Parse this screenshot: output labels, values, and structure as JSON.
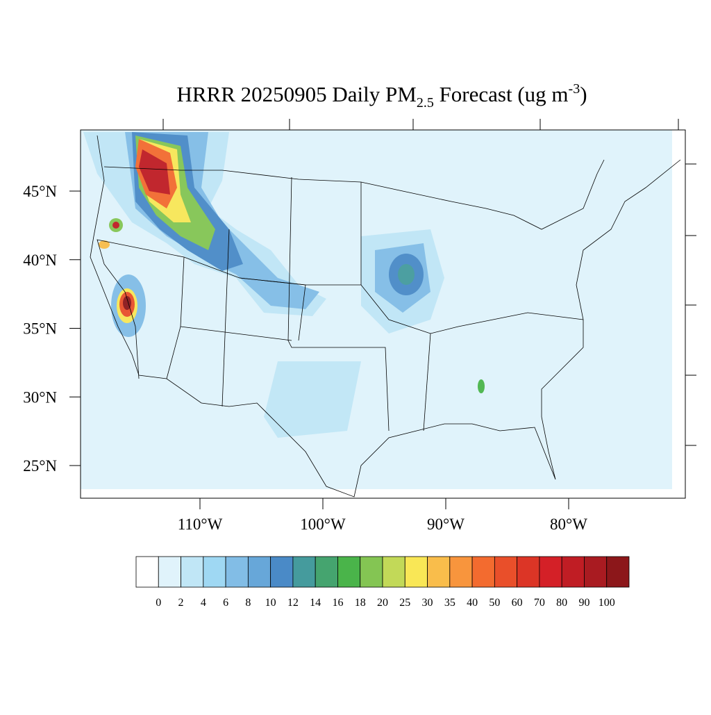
{
  "header": {
    "title_main": "HRRR 20250905 Daily PM",
    "title_sub": "2.5",
    "title_rest": " Forecast (ug m",
    "title_sup": "-3",
    "title_end": ")"
  },
  "map": {
    "lat_ticks": [
      {
        "value": 45,
        "label": "45°N"
      },
      {
        "value": 40,
        "label": "40°N"
      },
      {
        "value": 35,
        "label": "35°N"
      },
      {
        "value": 30,
        "label": "30°N"
      },
      {
        "value": 25,
        "label": "25°N"
      }
    ],
    "lon_ticks": [
      {
        "value": -110,
        "label": "110°W"
      },
      {
        "value": -100,
        "label": "100°W"
      },
      {
        "value": -90,
        "label": "90°W"
      },
      {
        "value": -80,
        "label": "80°W"
      }
    ]
  },
  "colorbar": {
    "levels": [
      0,
      2,
      4,
      6,
      8,
      10,
      12,
      14,
      16,
      18,
      20,
      25,
      30,
      35,
      40,
      50,
      60,
      70,
      80,
      90,
      100
    ],
    "colors": [
      "#ffffff",
      "#e0f3fb",
      "#c0e6f6",
      "#9fd8f3",
      "#82bde6",
      "#67a7d9",
      "#4a8ac7",
      "#459b9d",
      "#45a46f",
      "#4ab44a",
      "#84c553",
      "#c2d958",
      "#f9e756",
      "#f9bd4b",
      "#f8953d",
      "#f36b2f",
      "#e94f2a",
      "#dc3526",
      "#d42027",
      "#c01d24",
      "#a91b21",
      "#8c171a"
    ]
  }
}
